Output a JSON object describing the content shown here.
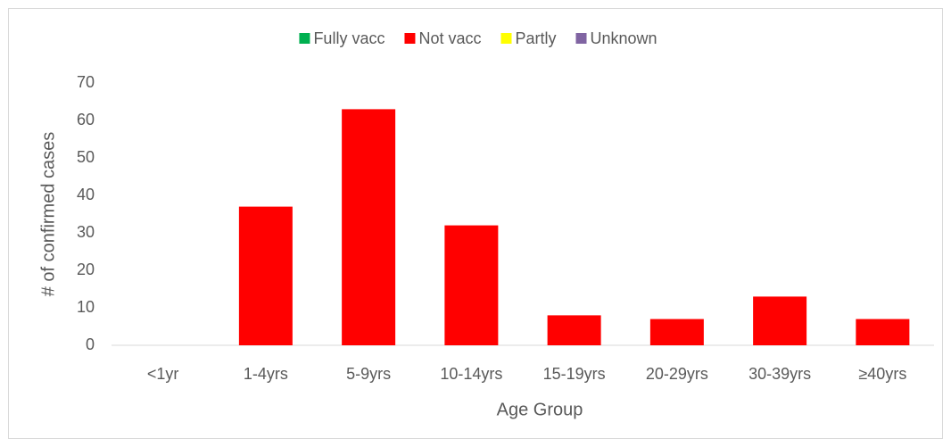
{
  "chart_data": {
    "type": "bar",
    "stacked": true,
    "xlabel": "Age Group",
    "ylabel": "# of confirmed cases",
    "categories": [
      "<1yr",
      "1-4yrs",
      "5-9yrs",
      "10-14yrs",
      "15-19yrs",
      "20-29yrs",
      "30-39yrs",
      "≥40yrs"
    ],
    "series": [
      {
        "name": "Fully vacc",
        "color": "#00b050",
        "values": [
          0,
          0,
          0,
          0,
          0,
          0,
          0,
          0
        ]
      },
      {
        "name": "Not vacc",
        "color": "#ff0000",
        "values": [
          0,
          37,
          63,
          32,
          8,
          7,
          13,
          7
        ]
      },
      {
        "name": "Partly",
        "color": "#ffff00",
        "values": [
          0,
          0,
          0,
          0,
          0,
          0,
          0,
          0
        ]
      },
      {
        "name": "Unknown",
        "color": "#8064a2",
        "values": [
          0,
          0,
          0,
          0,
          0,
          0,
          0,
          0
        ]
      }
    ],
    "ylim": [
      0,
      70
    ],
    "yticks": [
      0,
      10,
      20,
      30,
      40,
      50,
      60,
      70
    ],
    "grid": false,
    "legend": "top"
  }
}
